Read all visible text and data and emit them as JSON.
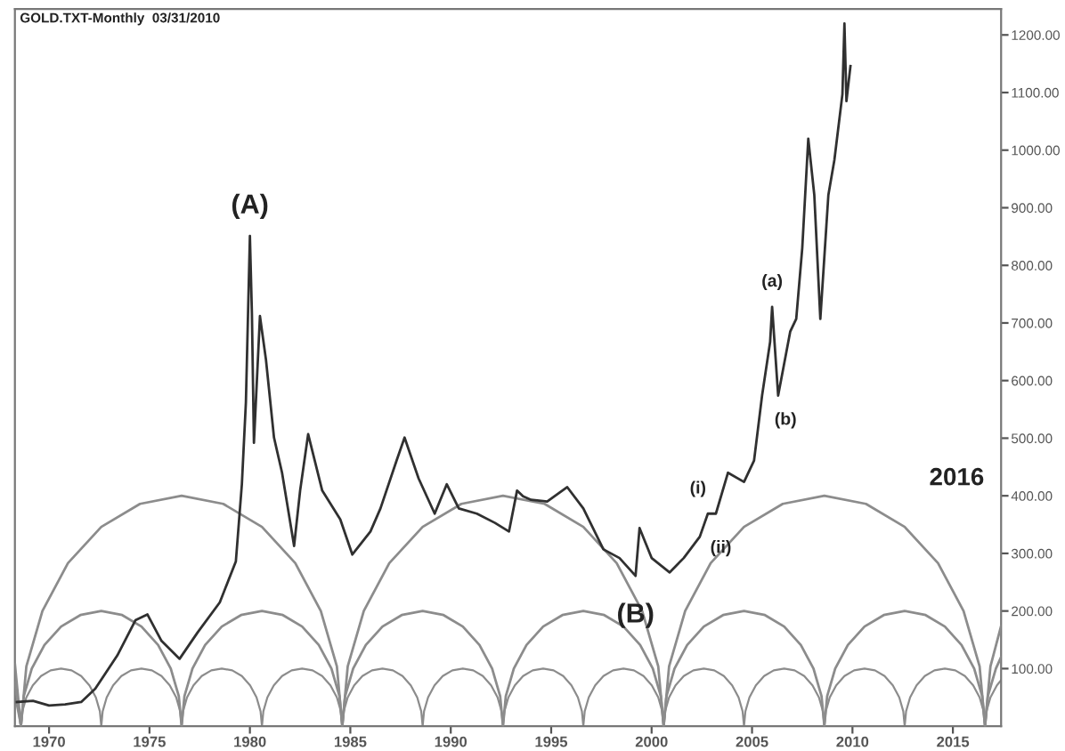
{
  "chart_data": {
    "type": "line",
    "title": "GOLD.TXT-Monthly  03/31/2010",
    "xlim": [
      1968.3,
      2017.4
    ],
    "ylim": [
      0,
      1245
    ],
    "xticks": [
      1970,
      1975,
      1980,
      1985,
      1990,
      1995,
      2000,
      2005,
      2010,
      2015
    ],
    "yticks": [
      {
        "value": 100,
        "label": "100.00"
      },
      {
        "value": 200,
        "label": "200.00"
      },
      {
        "value": 300,
        "label": "300.00"
      },
      {
        "value": 400,
        "label": "400.00"
      },
      {
        "value": 500,
        "label": "500.00"
      },
      {
        "value": 600,
        "label": "600.00"
      },
      {
        "value": 700,
        "label": "700.00"
      },
      {
        "value": 800,
        "label": "800.00"
      },
      {
        "value": 900,
        "label": "900.00"
      },
      {
        "value": 1000,
        "label": "1000.00"
      },
      {
        "value": 1100,
        "label": "1100.00"
      },
      {
        "value": 1200,
        "label": "1200.00"
      }
    ],
    "grid": false,
    "legend": false,
    "line_style": "solid",
    "marker": "none",
    "series": [
      {
        "color": "#8c8c8c",
        "x": [
          1968.3,
          1968.6,
          1968.67,
          1968.87,
          1969.19,
          1969.6,
          1970.08,
          1970.6,
          1971.12,
          1971.6,
          1972.01,
          1972.33,
          1972.53,
          1972.6,
          1972.67,
          1972.87,
          1973.19,
          1973.6,
          1974.08,
          1974.6,
          1975.12,
          1975.6,
          1976.01,
          1976.33,
          1976.53,
          1976.6,
          1976.67,
          1976.87,
          1977.19,
          1977.6,
          1978.08,
          1978.6,
          1979.12,
          1979.6,
          1980.01,
          1980.33,
          1980.53,
          1980.6,
          1980.67,
          1980.87,
          1981.19,
          1981.6,
          1982.08,
          1982.6,
          1983.12,
          1983.6,
          1984.01,
          1984.33,
          1984.53,
          1984.6,
          1984.67,
          1984.87,
          1985.19,
          1985.6,
          1986.08,
          1986.6,
          1987.12,
          1987.6,
          1988.01,
          1988.33,
          1988.53,
          1988.6,
          1988.67,
          1988.87,
          1989.19,
          1989.6,
          1990.08,
          1990.6,
          1991.12,
          1991.6,
          1992.01,
          1992.33,
          1992.53,
          1992.6,
          1992.67,
          1992.87,
          1993.19,
          1993.6,
          1994.08,
          1994.6,
          1995.12,
          1995.6,
          1996.01,
          1996.33,
          1996.53,
          1996.6,
          1996.67,
          1996.87,
          1997.19,
          1997.6,
          1998.08,
          1998.6,
          1999.12,
          1999.6,
          2000.01,
          2000.33,
          2000.53,
          2000.6,
          2000.67,
          2000.87,
          2001.19,
          2001.6,
          2002.08,
          2002.6,
          2003.12,
          2003.6,
          2004.01,
          2004.33,
          2004.53,
          2004.6,
          2004.67,
          2004.87,
          2005.19,
          2005.6,
          2006.08,
          2006.6,
          2007.12,
          2007.6,
          2008.01,
          2008.33,
          2008.53,
          2008.6,
          2008.67,
          2008.87,
          2009.19,
          2009.6,
          2010.08,
          2010.6,
          2011.12,
          2011.6,
          2012.01,
          2012.33,
          2012.53,
          2012.6,
          2012.67,
          2012.87,
          2013.19,
          2013.6,
          2014.08,
          2014.6,
          2015.12,
          2015.6,
          2016.01,
          2016.33,
          2016.53,
          2016.6,
          2016.67,
          2016.87,
          2017.19,
          2017.4
        ],
        "values": [
          53,
          0,
          26,
          50,
          71,
          87,
          97,
          100,
          97,
          87,
          71,
          50,
          26,
          0,
          26,
          50,
          71,
          87,
          97,
          100,
          97,
          87,
          71,
          50,
          26,
          0,
          26,
          50,
          71,
          87,
          97,
          100,
          97,
          87,
          71,
          50,
          26,
          0,
          26,
          50,
          71,
          87,
          97,
          100,
          97,
          87,
          71,
          50,
          26,
          0,
          26,
          50,
          71,
          87,
          97,
          100,
          97,
          87,
          71,
          50,
          26,
          0,
          26,
          50,
          71,
          87,
          97,
          100,
          97,
          87,
          71,
          50,
          26,
          0,
          26,
          50,
          71,
          87,
          97,
          100,
          97,
          87,
          71,
          50,
          26,
          0,
          26,
          50,
          71,
          87,
          97,
          100,
          97,
          87,
          71,
          50,
          26,
          0,
          26,
          50,
          71,
          87,
          97,
          100,
          97,
          87,
          71,
          50,
          26,
          0,
          26,
          50,
          71,
          87,
          97,
          100,
          97,
          87,
          71,
          50,
          26,
          0,
          26,
          50,
          71,
          87,
          97,
          100,
          97,
          87,
          71,
          50,
          26,
          0,
          26,
          50,
          71,
          87,
          97,
          100,
          97,
          87,
          71,
          50,
          26,
          0,
          26,
          50,
          71,
          80
        ]
      },
      {
        "color": "#8c8c8c",
        "x": [
          1968.3,
          1968.6,
          1968.74,
          1969.14,
          1969.77,
          1970.6,
          1971.56,
          1972.6,
          1973.64,
          1974.6,
          1975.43,
          1976.06,
          1976.46,
          1976.6,
          1976.74,
          1977.14,
          1977.77,
          1978.6,
          1979.56,
          1980.6,
          1981.64,
          1982.6,
          1983.43,
          1984.06,
          1984.46,
          1984.6,
          1984.74,
          1985.14,
          1985.77,
          1986.6,
          1987.56,
          1988.6,
          1989.64,
          1990.6,
          1991.43,
          1992.06,
          1992.46,
          1992.6,
          1992.74,
          1993.14,
          1993.77,
          1994.6,
          1995.56,
          1996.6,
          1997.64,
          1998.6,
          1999.43,
          2000.06,
          2000.46,
          2000.6,
          2000.74,
          2001.14,
          2001.77,
          2002.6,
          2003.56,
          2004.6,
          2005.64,
          2006.6,
          2007.43,
          2008.06,
          2008.46,
          2008.6,
          2008.74,
          2009.14,
          2009.77,
          2010.6,
          2011.56,
          2012.6,
          2013.64,
          2014.6,
          2015.43,
          2016.06,
          2016.46,
          2016.6,
          2016.74,
          2017.14,
          2017.4
        ],
        "values": [
          76,
          0,
          52,
          100,
          141,
          173,
          193,
          200,
          193,
          173,
          141,
          100,
          52,
          0,
          52,
          100,
          141,
          173,
          193,
          200,
          193,
          173,
          141,
          100,
          52,
          0,
          52,
          100,
          141,
          173,
          193,
          200,
          193,
          173,
          141,
          100,
          52,
          0,
          52,
          100,
          141,
          173,
          193,
          200,
          193,
          173,
          141,
          100,
          52,
          0,
          52,
          100,
          141,
          173,
          193,
          200,
          193,
          173,
          141,
          100,
          52,
          0,
          52,
          100,
          141,
          173,
          193,
          200,
          193,
          173,
          141,
          100,
          52,
          0,
          52,
          100,
          120
        ]
      },
      {
        "color": "#8c8c8c",
        "x": [
          1968.3,
          1968.6,
          1968.87,
          1969.67,
          1970.94,
          1972.6,
          1974.53,
          1976.6,
          1978.67,
          1980.6,
          1982.26,
          1983.53,
          1984.33,
          1984.6,
          1984.87,
          1985.67,
          1986.94,
          1988.6,
          1990.53,
          1992.6,
          1994.67,
          1996.6,
          1998.26,
          1999.53,
          2000.33,
          2000.6,
          2000.87,
          2001.67,
          2002.94,
          2004.6,
          2006.53,
          2008.6,
          2010.67,
          2012.6,
          2014.26,
          2015.53,
          2016.33,
          2016.6,
          2016.87,
          2017.4
        ],
        "values": [
          108,
          0,
          104,
          200,
          283,
          346,
          386,
          400,
          386,
          346,
          283,
          200,
          104,
          0,
          104,
          200,
          283,
          346,
          386,
          400,
          386,
          346,
          283,
          200,
          104,
          0,
          104,
          200,
          283,
          346,
          386,
          400,
          386,
          346,
          283,
          200,
          104,
          0,
          104,
          174
        ]
      },
      {
        "color": "#303030",
        "x": [
          1968.4,
          1969.2,
          1970.0,
          1970.8,
          1971.6,
          1972.3,
          1973.4,
          1974.3,
          1974.9,
          1975.6,
          1976.5,
          1977.4,
          1978.5,
          1979.3,
          1979.6,
          1979.8,
          1980.0,
          1980.1,
          1980.2,
          1980.5,
          1980.8,
          1981.2,
          1981.6,
          1982.2,
          1982.5,
          1982.9,
          1983.6,
          1984.5,
          1985.1,
          1986.0,
          1986.5,
          1987.3,
          1987.7,
          1988.4,
          1989.2,
          1989.8,
          1990.4,
          1991.3,
          1992.2,
          1992.9,
          1993.3,
          1993.6,
          1994.0,
          1994.8,
          1995.8,
          1996.6,
          1997.6,
          1998.4,
          1999.2,
          1999.4,
          2000.0,
          2000.9,
          2001.6,
          2002.4,
          2002.8,
          2003.2,
          2003.8,
          2004.6,
          2005.1,
          2005.5,
          2005.9,
          2006.0,
          2006.3,
          2006.9,
          2007.2,
          2007.5,
          2007.8,
          2008.1,
          2008.4,
          2008.8,
          2009.1,
          2009.5,
          2009.6,
          2009.7,
          2009.9
        ],
        "values": [
          42,
          44,
          36,
          38,
          42,
          65,
          123,
          184,
          194,
          148,
          117,
          163,
          215,
          286,
          420,
          562,
          851,
          716,
          492,
          712,
          636,
          501,
          440,
          313,
          409,
          507,
          409,
          359,
          298,
          338,
          378,
          461,
          501,
          430,
          369,
          420,
          378,
          369,
          353,
          338,
          409,
          399,
          393,
          390,
          415,
          378,
          307,
          292,
          261,
          344,
          292,
          267,
          292,
          329,
          369,
          369,
          440,
          424,
          461,
          574,
          667,
          728,
          574,
          685,
          707,
          830,
          1020,
          922,
          707,
          922,
          983,
          1097,
          1220,
          1085,
          1146
        ]
      }
    ],
    "annotations": [
      {
        "text": "(A)",
        "x": 1980.0,
        "y": 851
      },
      {
        "text": "(B)",
        "x": 1999.2,
        "y": 261
      },
      {
        "text": "(a)",
        "x": 2006.0,
        "y": 728
      },
      {
        "text": "(b)",
        "x": 2006.3,
        "y": 574
      },
      {
        "text": "(i)",
        "x": 2002.8,
        "y": 369
      },
      {
        "text": "(ii)",
        "x": 2003.2,
        "y": 369
      },
      "2016"
    ]
  }
}
